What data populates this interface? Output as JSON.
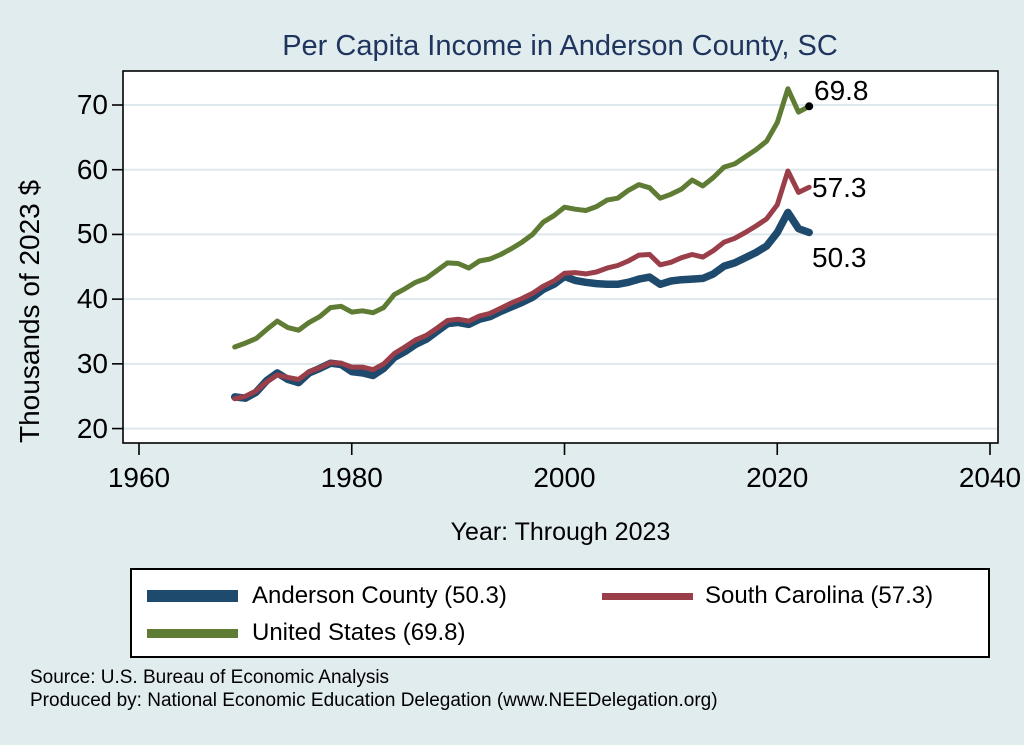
{
  "title": "Per Capita Income in Anderson County, SC",
  "chart_data": {
    "type": "line",
    "title": "Per Capita Income in Anderson County, SC",
    "xlabel": "Year: Through 2023",
    "ylabel": "Thousands of 2023 $",
    "x_tick_labels": [
      "1960",
      "1980",
      "2000",
      "2020",
      "2040"
    ],
    "x_ticks": [
      1960,
      1980,
      2000,
      2020,
      2040
    ],
    "y_ticks": [
      20,
      30,
      40,
      50,
      60,
      70
    ],
    "xlim": [
      1958.5,
      2042
    ],
    "ylim": [
      17.8,
      75.2
    ],
    "grid": "horizontal-only",
    "x": [
      1969,
      1970,
      1971,
      1972,
      1973,
      1974,
      1975,
      1976,
      1977,
      1978,
      1979,
      1980,
      1981,
      1982,
      1983,
      1984,
      1985,
      1986,
      1987,
      1988,
      1989,
      1990,
      1991,
      1992,
      1993,
      1994,
      1995,
      1996,
      1997,
      1998,
      1999,
      2000,
      2001,
      2002,
      2003,
      2004,
      2005,
      2006,
      2007,
      2008,
      2009,
      2010,
      2011,
      2012,
      2013,
      2014,
      2015,
      2016,
      2017,
      2018,
      2019,
      2020,
      2021,
      2022,
      2023
    ],
    "series": [
      {
        "name": "Anderson County (50.3)",
        "color": "#1e4a6d",
        "stroke_width": 7.5,
        "values": [
          24.9,
          24.7,
          25.6,
          27.4,
          28.6,
          27.6,
          27.1,
          28.6,
          29.3,
          30.1,
          29.9,
          28.8,
          28.6,
          28.2,
          29.3,
          31.0,
          31.9,
          33.0,
          33.8,
          35.0,
          36.2,
          36.4,
          36.1,
          36.9,
          37.3,
          38.1,
          38.8,
          39.5,
          40.3,
          41.5,
          42.3,
          43.5,
          42.9,
          42.6,
          42.4,
          42.3,
          42.3,
          42.6,
          43.1,
          43.4,
          42.3,
          42.8,
          43.0,
          43.1,
          43.2,
          43.9,
          45.1,
          45.6,
          46.4,
          47.2,
          48.2,
          50.3,
          53.4,
          50.9,
          50.3
        ]
      },
      {
        "name": "South Carolina (57.3)",
        "color": "#9a3e49",
        "stroke_width": 5,
        "values": [
          24.6,
          25.0,
          25.8,
          27.2,
          28.3,
          27.9,
          27.6,
          28.8,
          29.4,
          30.2,
          30.1,
          29.5,
          29.5,
          29.1,
          30.0,
          31.6,
          32.6,
          33.7,
          34.4,
          35.5,
          36.7,
          36.9,
          36.6,
          37.4,
          37.8,
          38.6,
          39.4,
          40.1,
          40.9,
          42.0,
          42.8,
          44.0,
          44.1,
          43.9,
          44.2,
          44.8,
          45.2,
          45.9,
          46.8,
          46.9,
          45.3,
          45.7,
          46.4,
          46.9,
          46.5,
          47.5,
          48.8,
          49.4,
          50.3,
          51.3,
          52.4,
          54.6,
          59.8,
          56.5,
          57.3
        ]
      },
      {
        "name": "United States (69.8)",
        "color": "#5e7c33",
        "stroke_width": 5,
        "values": [
          32.6,
          33.2,
          33.9,
          35.3,
          36.6,
          35.6,
          35.2,
          36.4,
          37.3,
          38.7,
          38.9,
          38.0,
          38.2,
          37.9,
          38.7,
          40.7,
          41.6,
          42.6,
          43.2,
          44.4,
          45.6,
          45.5,
          44.8,
          45.9,
          46.2,
          46.9,
          47.8,
          48.8,
          50.0,
          51.9,
          52.9,
          54.2,
          53.9,
          53.7,
          54.3,
          55.3,
          55.6,
          56.8,
          57.7,
          57.2,
          55.6,
          56.2,
          57.0,
          58.4,
          57.5,
          58.8,
          60.4,
          60.9,
          62.0,
          63.1,
          64.4,
          67.3,
          72.5,
          68.9,
          69.8
        ]
      }
    ],
    "end_labels": [
      {
        "text": "69.8",
        "series": "United States"
      },
      {
        "text": "57.3",
        "series": "South Carolina"
      },
      {
        "text": "50.3",
        "series": "Anderson County"
      }
    ],
    "end_marker": {
      "series_index": 2,
      "year": 2023,
      "value": 69.8,
      "color": "#000000"
    },
    "legend_position": "bottom"
  },
  "legend": {
    "items": [
      {
        "label": "Anderson County (50.3)",
        "color": "#1e4a6d"
      },
      {
        "label": "South Carolina (57.3)",
        "color": "#9a3e49"
      },
      {
        "label": "United States (69.8)",
        "color": "#5e7c33"
      }
    ]
  },
  "footer": {
    "source_line": "Source: U.S. Bureau of Economic Analysis",
    "produced_line": "Produced by: National Economic Education Delegation (www.NEEDelegation.org)"
  },
  "colors": {
    "background": "#e1ecef",
    "plot_background": "#ffffff",
    "title_text": "#20355e",
    "gridline": "#dde8ed",
    "axis_frame": "#000000"
  }
}
